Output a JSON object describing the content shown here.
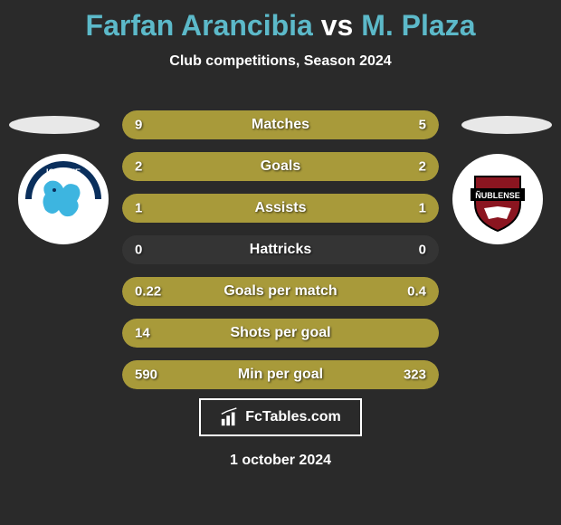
{
  "title": {
    "player1": "Farfan Arancibia",
    "vs": "vs",
    "player2": "M. Plaza",
    "player1_color": "#5cb9c9",
    "vs_color": "#ffffff",
    "player2_color": "#5cb9c9"
  },
  "subtitle": "Club competitions, Season 2024",
  "background_color": "#2a2a2a",
  "team_left": {
    "name": "IQUIQUE",
    "badge_bg": "#ffffff",
    "badge_top_color": "#0a2f5c",
    "badge_dragon_color": "#3db5e0"
  },
  "team_right": {
    "name": "ÑUBLENSE",
    "badge_bg": "#ffffff",
    "badge_shield_color": "#8b1520",
    "badge_banner_color": "#000000"
  },
  "stats": [
    {
      "label": "Matches",
      "left_val": "9",
      "right_val": "5",
      "left_pct": 64,
      "right_pct": 36,
      "left_color": "#a89a3a",
      "right_color": "#a89a3a"
    },
    {
      "label": "Goals",
      "left_val": "2",
      "right_val": "2",
      "left_pct": 50,
      "right_pct": 50,
      "left_color": "#a89a3a",
      "right_color": "#a89a3a"
    },
    {
      "label": "Assists",
      "left_val": "1",
      "right_val": "1",
      "left_pct": 50,
      "right_pct": 50,
      "left_color": "#a89a3a",
      "right_color": "#a89a3a"
    },
    {
      "label": "Hattricks",
      "left_val": "0",
      "right_val": "0",
      "left_pct": 0,
      "right_pct": 0,
      "left_color": "#a89a3a",
      "right_color": "#a89a3a"
    },
    {
      "label": "Goals per match",
      "left_val": "0.22",
      "right_val": "0.4",
      "left_pct": 35,
      "right_pct": 65,
      "left_color": "#a89a3a",
      "right_color": "#a89a3a"
    },
    {
      "label": "Shots per goal",
      "left_val": "14",
      "right_val": "",
      "left_pct": 100,
      "right_pct": 0,
      "left_color": "#a89a3a",
      "right_color": "#a89a3a"
    },
    {
      "label": "Min per goal",
      "left_val": "590",
      "right_val": "323",
      "left_pct": 65,
      "right_pct": 35,
      "left_color": "#a89a3a",
      "right_color": "#a89a3a"
    }
  ],
  "footer": {
    "brand": "FcTables.com",
    "date": "1 october 2024"
  }
}
